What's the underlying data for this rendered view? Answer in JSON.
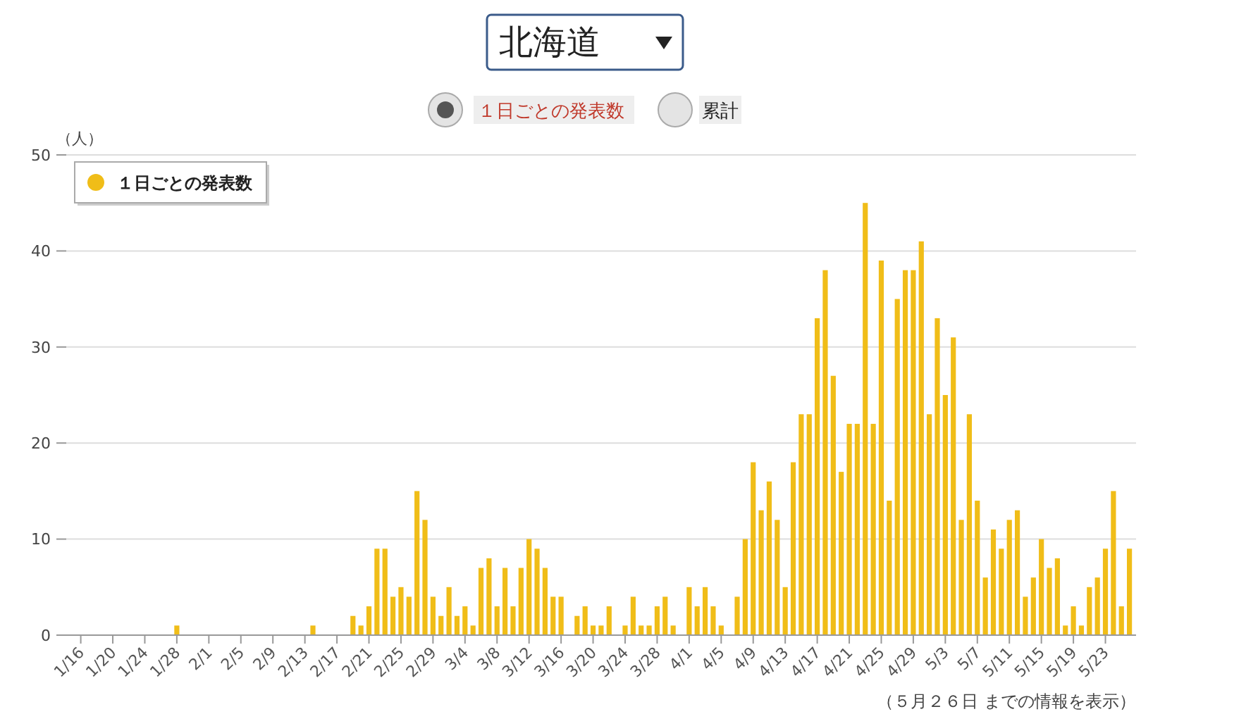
{
  "chart_data": {
    "type": "bar",
    "title": "北海道",
    "ylabel": "（人）",
    "annotations": [
      "１日ごとの発表数",
      "累計",
      "（５月２６日 までの情報を表示）"
    ],
    "categories": [
      "1/16",
      null,
      null,
      null,
      "1/20",
      null,
      null,
      null,
      "1/24",
      null,
      null,
      null,
      "1/28",
      null,
      null,
      null,
      "2/1",
      null,
      null,
      null,
      "2/5",
      null,
      null,
      null,
      "2/9",
      null,
      null,
      null,
      "2/13",
      null,
      null,
      null,
      "2/17",
      null,
      null,
      null,
      "2/21",
      null,
      null,
      null,
      "2/25",
      null,
      null,
      null,
      "2/29",
      null,
      null,
      null,
      "3/4",
      null,
      null,
      null,
      "3/8",
      null,
      null,
      null,
      "3/12",
      null,
      null,
      null,
      "3/16",
      null,
      null,
      null,
      "3/20",
      null,
      null,
      null,
      "3/24",
      null,
      null,
      null,
      "3/28",
      null,
      null,
      null,
      "4/1",
      null,
      null,
      null,
      "4/5",
      null,
      null,
      null,
      "4/9",
      null,
      null,
      null,
      "4/13",
      null,
      null,
      null,
      "4/17",
      null,
      null,
      null,
      "4/21",
      null,
      null,
      null,
      "4/25",
      null,
      null,
      null,
      "4/29",
      null,
      null,
      null,
      "5/3",
      null,
      null,
      null,
      "5/7",
      null,
      null,
      null,
      "5/11",
      null,
      null,
      null,
      "5/15",
      null,
      null,
      null,
      "5/19",
      null,
      null,
      null,
      "5/23",
      null,
      null,
      null
    ],
    "series": [
      {
        "name": "１日ごとの発表数",
        "color": "#f0bd18",
        "values": [
          0,
          0,
          0,
          0,
          0,
          0,
          0,
          0,
          0,
          0,
          0,
          0,
          1,
          0,
          0,
          0,
          0,
          0,
          0,
          0,
          0,
          0,
          0,
          0,
          0,
          0,
          0,
          0,
          0,
          1,
          0,
          0,
          0,
          0,
          2,
          1,
          3,
          9,
          9,
          4,
          5,
          4,
          15,
          12,
          4,
          2,
          5,
          2,
          3,
          1,
          7,
          8,
          3,
          7,
          3,
          7,
          10,
          9,
          7,
          4,
          4,
          0,
          2,
          3,
          1,
          1,
          3,
          0,
          1,
          4,
          1,
          1,
          3,
          4,
          1,
          0,
          5,
          3,
          5,
          3,
          1,
          0,
          4,
          10,
          18,
          13,
          16,
          12,
          5,
          18,
          23,
          23,
          33,
          38,
          27,
          17,
          22,
          22,
          45,
          22,
          39,
          14,
          35,
          38,
          38,
          41,
          23,
          33,
          25,
          31,
          12,
          23,
          14,
          6,
          11,
          9,
          12,
          13,
          4,
          6,
          10,
          7,
          8,
          1,
          3,
          1,
          5,
          6,
          9,
          15,
          3,
          9
        ]
      }
    ],
    "ylim": [
      0,
      50
    ],
    "yticks": [
      0,
      10,
      20,
      30,
      40,
      50
    ],
    "grid": "y",
    "legend": "top left"
  }
}
